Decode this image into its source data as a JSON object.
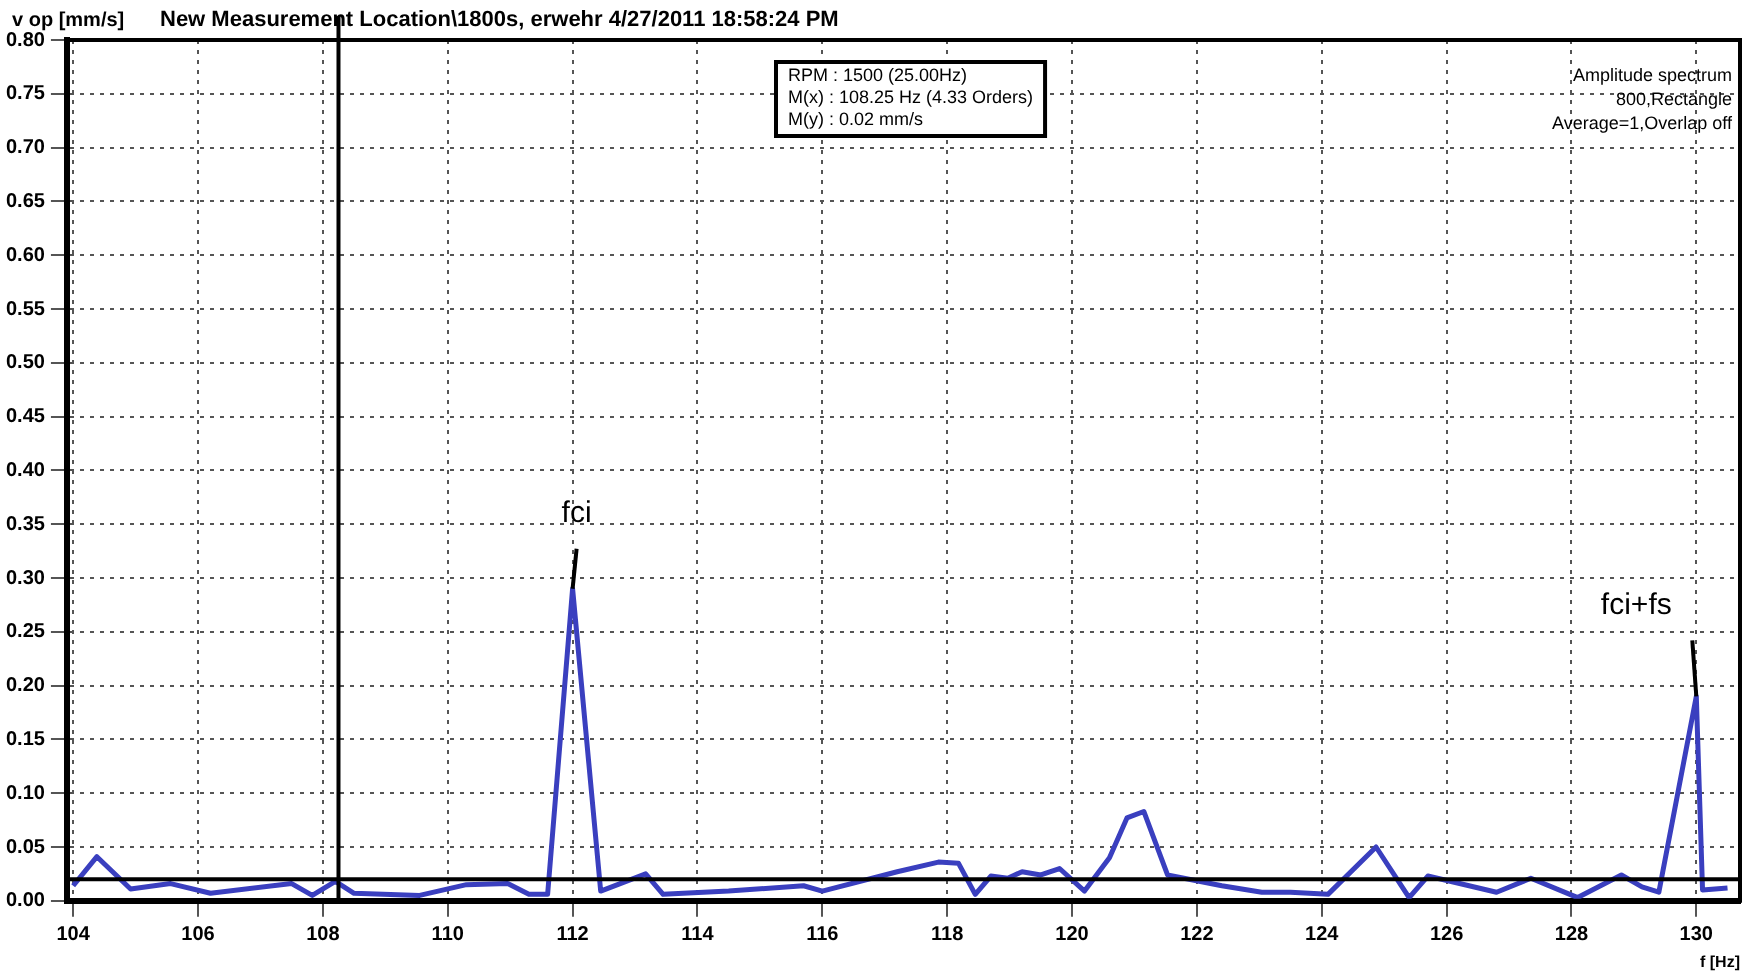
{
  "chart_data": {
    "type": "line",
    "title": "New Measurement Location\\1800s, erwehr 4/27/2011 18:58:24 PM",
    "xlabel": "f [Hz]",
    "ylabel": "v op [mm/s]",
    "x": [
      104,
      104.38,
      104.92,
      105.56,
      106.2,
      107.5,
      107.83,
      108.2,
      108.5,
      109.55,
      110.3,
      110.96,
      111.3,
      111.6,
      112,
      112.45,
      113.17,
      113.45,
      114.5,
      115.7,
      116,
      117.2,
      117.86,
      118.18,
      118.45,
      118.7,
      118.97,
      119.2,
      119.5,
      119.8,
      120.2,
      120.6,
      120.88,
      121.15,
      121.53,
      122.4,
      123.04,
      123.5,
      124.1,
      124.87,
      125.4,
      125.7,
      126.8,
      127.35,
      128.1,
      128.8,
      129.13,
      129.4,
      130,
      130.1,
      130.5
    ],
    "series": [
      {
        "color": "#3a3fbf",
        "values": [
          0.014,
          0.041,
          0.011,
          0.016,
          0.007,
          0.016,
          0.005,
          0.018,
          0.007,
          0.005,
          0.015,
          0.016,
          0.006,
          0.006,
          0.29,
          0.009,
          0.025,
          0.006,
          0.009,
          0.014,
          0.009,
          0.027,
          0.036,
          0.035,
          0.006,
          0.023,
          0.021,
          0.027,
          0.024,
          0.03,
          0.009,
          0.04,
          0.077,
          0.083,
          0.024,
          0.014,
          0.008,
          0.008,
          0.006,
          0.05,
          0.003,
          0.023,
          0.008,
          0.021,
          0.003,
          0.024,
          0.013,
          0.008,
          0.19,
          0.01,
          0.012
        ]
      }
    ],
    "xlim": [
      103.9,
      130.7
    ],
    "xticks": [
      104,
      106,
      108,
      110,
      112,
      114,
      116,
      118,
      120,
      122,
      124,
      126,
      128,
      130
    ],
    "ylim": [
      0,
      0.8
    ],
    "yticks": [
      {
        "value": 0,
        "label": "0.00"
      },
      {
        "value": 0.05,
        "label": "0.05"
      },
      {
        "value": 0.1,
        "label": "0.10"
      },
      {
        "value": 0.15,
        "label": "0.15"
      },
      {
        "value": 0.2,
        "label": "0.20"
      },
      {
        "value": 0.25,
        "label": "0.25"
      },
      {
        "value": 0.3,
        "label": "0.30"
      },
      {
        "value": 0.35,
        "label": "0.35"
      },
      {
        "value": 0.4,
        "label": "0.40"
      },
      {
        "value": 0.45,
        "label": "0.45"
      },
      {
        "value": 0.5,
        "label": "0.50"
      },
      {
        "value": 0.55,
        "label": "0.55"
      },
      {
        "value": 0.6,
        "label": "0.60"
      },
      {
        "value": 0.65,
        "label": "0.65"
      },
      {
        "value": 0.7,
        "label": "0.70"
      },
      {
        "value": 0.75,
        "label": "0.75"
      },
      {
        "value": 0.8,
        "label": "0.80"
      }
    ],
    "grid": true,
    "legend": false,
    "marker": "none",
    "line_style": "solid",
    "ref_lines": [
      {
        "axis": "x",
        "value": 108.25,
        "color": "#000000"
      },
      {
        "axis": "y",
        "value": 0.02,
        "color": "#000000"
      }
    ],
    "annotations": [
      {
        "text": "fci",
        "x": 112,
        "y": 0.29
      },
      {
        "text": "fci+fs",
        "x": 130,
        "y": 0.19
      },
      "RPM : 1500 (25.00Hz)",
      "M(x) : 108.25 Hz (4.33 Orders)",
      "M(y) : 0.02 mm/s",
      "Amplitude spectrum",
      "800,Rectangle",
      "Average=1,Overlap off"
    ]
  }
}
